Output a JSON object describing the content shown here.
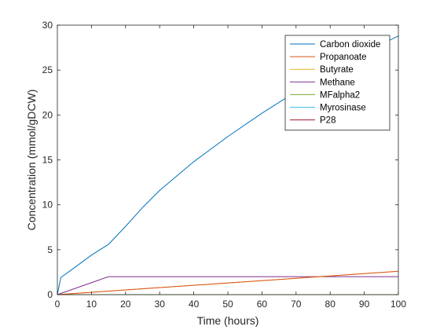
{
  "chart_data": {
    "type": "line",
    "title": "",
    "xlabel": "Time (hours)",
    "ylabel": "Concentration (mmol/gDCW)",
    "xlim": [
      0,
      100
    ],
    "ylim": [
      0,
      30
    ],
    "xticks": [
      0,
      10,
      20,
      30,
      40,
      50,
      60,
      70,
      80,
      90,
      100
    ],
    "yticks": [
      0,
      5,
      10,
      15,
      20,
      25,
      30
    ],
    "grid": false,
    "legend_position": "top-right",
    "series": [
      {
        "name": "Carbon dioxide",
        "color": "#0072BD",
        "x": [
          0,
          1,
          5,
          10,
          15,
          20,
          25,
          30,
          40,
          50,
          60,
          70,
          80,
          90,
          100
        ],
        "y": [
          0,
          1.9,
          3.0,
          4.4,
          5.6,
          7.6,
          9.7,
          11.6,
          14.8,
          17.6,
          20.2,
          22.6,
          24.9,
          26.9,
          28.8
        ]
      },
      {
        "name": "Propanoate",
        "color": "#D95319",
        "x": [
          0,
          100
        ],
        "y": [
          0,
          2.6
        ]
      },
      {
        "name": "Butyrate",
        "color": "#EDB120",
        "x": [
          0,
          100
        ],
        "y": [
          0,
          2.6
        ]
      },
      {
        "name": "Methane",
        "color": "#7E2F8E",
        "x": [
          0,
          15,
          100
        ],
        "y": [
          0,
          2.0,
          2.0
        ]
      },
      {
        "name": "MFalpha2",
        "color": "#77AC30",
        "x": [
          0,
          100
        ],
        "y": [
          0,
          0
        ]
      },
      {
        "name": "Myrosinase",
        "color": "#4DBEEE",
        "x": [
          0,
          100
        ],
        "y": [
          0,
          0
        ]
      },
      {
        "name": "P28",
        "color": "#A2142F",
        "x": [
          0,
          100
        ],
        "y": [
          0,
          0
        ]
      }
    ]
  }
}
